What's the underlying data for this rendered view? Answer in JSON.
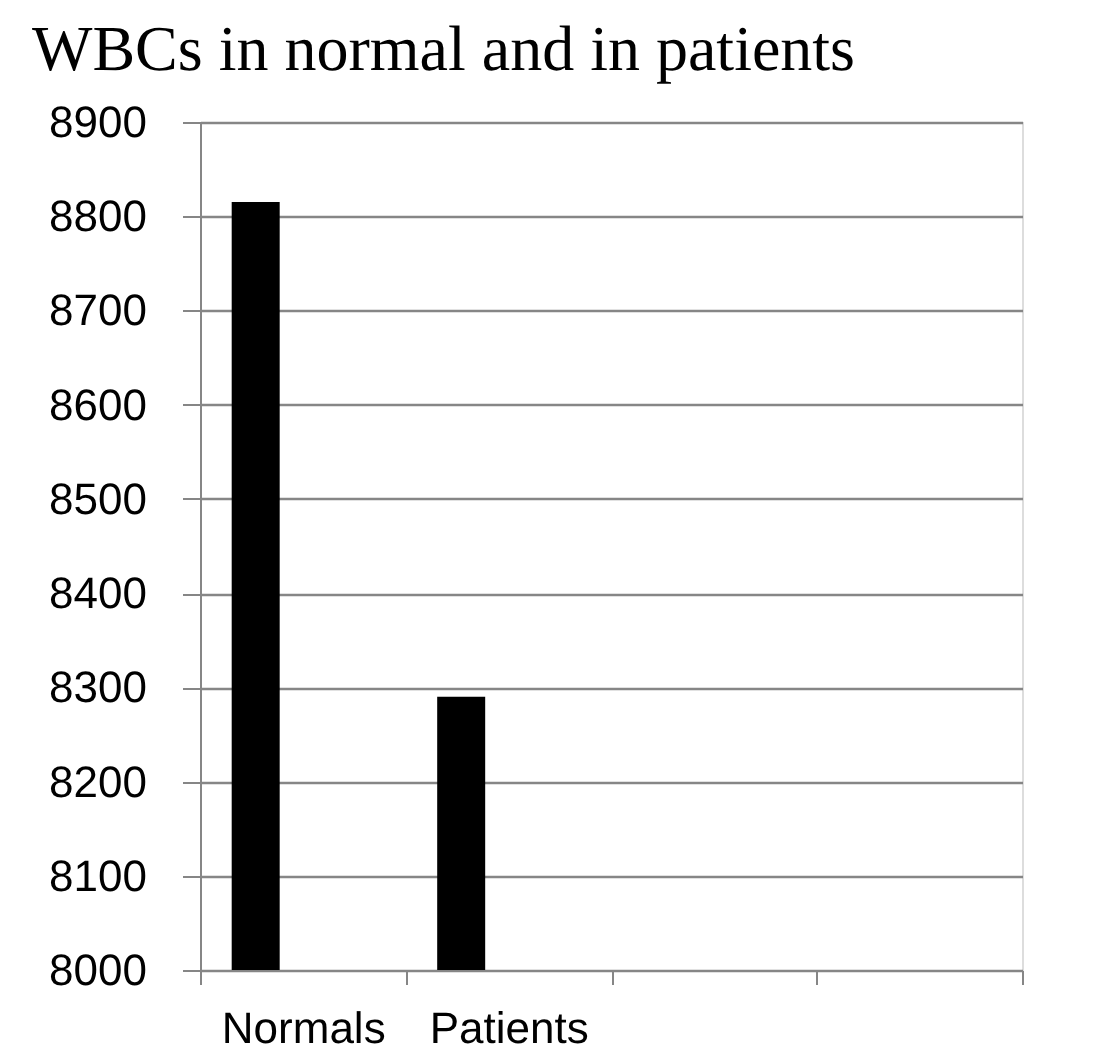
{
  "chart_data": {
    "type": "bar",
    "title": "WBCs in normal and in patients",
    "categories": [
      "Normals",
      "Patients",
      null,
      null
    ],
    "values": [
      8815,
      8290,
      null,
      null
    ],
    "color": "#000000",
    "ylim": [
      8000,
      8900
    ],
    "yticks": [
      8000,
      8100,
      8200,
      8300,
      8400,
      8500,
      8600,
      8700,
      8800,
      8900
    ],
    "grid": "y"
  }
}
